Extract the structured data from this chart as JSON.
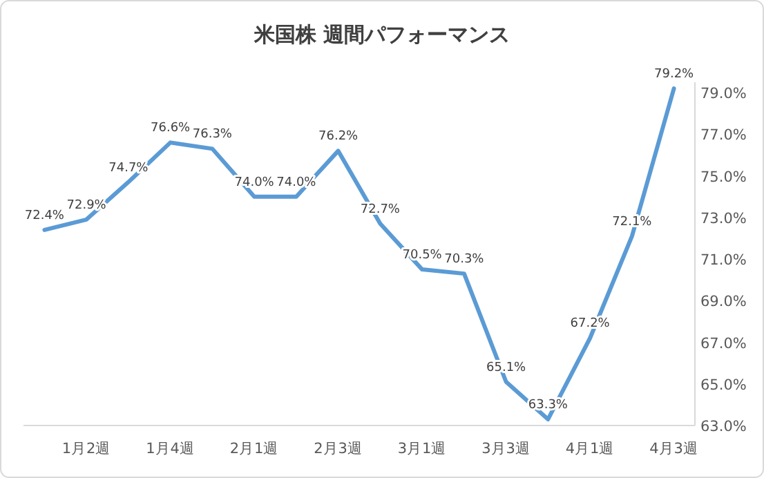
{
  "chart_data": {
    "type": "line",
    "title": "米国株 週間パフォーマンス",
    "categories": [
      null,
      "1月2週",
      null,
      "1月4週",
      null,
      "2月1週",
      null,
      "2月3週",
      null,
      "3月1週",
      null,
      "3月3週",
      null,
      "4月1週",
      null,
      "4月3週"
    ],
    "series": [
      {
        "color": "#5b9bd5",
        "values": [
          72.4,
          72.9,
          74.7,
          76.6,
          76.3,
          74.0,
          74.0,
          76.2,
          72.7,
          70.5,
          70.3,
          65.1,
          63.3,
          67.2,
          72.1,
          79.2
        ],
        "value_labels": [
          "72.4%",
          "72.9%",
          "74.7%",
          "76.6%",
          "76.3%",
          "74.0%",
          "74.0%",
          "76.2%",
          "72.7%",
          "70.5%",
          "70.3%",
          "65.1%",
          "63.3%",
          "67.2%",
          "72.1%",
          "79.2%"
        ]
      }
    ],
    "ylim": [
      63,
      79.5
    ],
    "yticks": [
      {
        "value": 63,
        "label": "63.0%"
      },
      {
        "value": 65,
        "label": "65.0%"
      },
      {
        "value": 67,
        "label": "67.0%"
      },
      {
        "value": 69,
        "label": "69.0%"
      },
      {
        "value": 71,
        "label": "71.0%"
      },
      {
        "value": 73,
        "label": "73.0%"
      },
      {
        "value": 75,
        "label": "75.0%"
      },
      {
        "value": 77,
        "label": "77.0%"
      },
      {
        "value": 79,
        "label": "79.0%"
      }
    ],
    "grid": false,
    "marker": "none",
    "line_style": "solid"
  }
}
